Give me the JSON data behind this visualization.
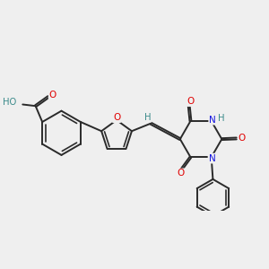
{
  "bg_color": "#efefef",
  "bond_color": "#2a2a2a",
  "atom_colors": {
    "O": "#e00000",
    "N": "#1414e0",
    "H": "#3a8a8a",
    "C": "#2a2a2a"
  },
  "figsize": [
    3.0,
    3.0
  ],
  "dpi": 100
}
